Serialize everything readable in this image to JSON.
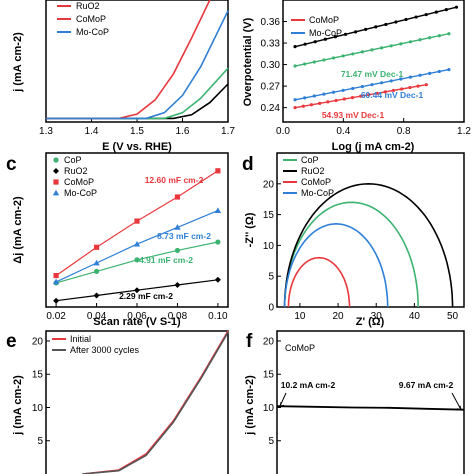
{
  "chart_data": [
    {
      "panel": "a",
      "type": "line",
      "xlabel": "E (V vs. RHE)",
      "ylabel": "j (mA cm-2)",
      "xlim": [
        1.3,
        1.7
      ],
      "xticks": [
        "1.3",
        "1.4",
        "1.5",
        "1.6",
        "1.7"
      ],
      "legend": [
        "RuO2",
        "CoMoP",
        "Mo-CoP"
      ],
      "series": [
        {
          "name": "CoP",
          "color": "#000000",
          "points": [
            [
              1.3,
              0
            ],
            [
              1.58,
              0
            ],
            [
              1.62,
              5
            ],
            [
              1.66,
              22
            ],
            [
              1.7,
              48
            ]
          ]
        },
        {
          "name": "RuO2",
          "color": "#3cb371",
          "points": [
            [
              1.3,
              0
            ],
            [
              1.56,
              0
            ],
            [
              1.6,
              8
            ],
            [
              1.64,
              28
            ],
            [
              1.7,
              70
            ]
          ]
        },
        {
          "name": "CoMoP",
          "color": "#e8383d",
          "points": [
            [
              1.3,
              0
            ],
            [
              1.46,
              0
            ],
            [
              1.5,
              6
            ],
            [
              1.54,
              26
            ],
            [
              1.58,
              62
            ],
            [
              1.62,
              112
            ],
            [
              1.66,
              165
            ]
          ]
        },
        {
          "name": "Mo-CoP",
          "color": "#2f7fd6",
          "points": [
            [
              1.3,
              0
            ],
            [
              1.52,
              0
            ],
            [
              1.56,
              8
            ],
            [
              1.6,
              32
            ],
            [
              1.64,
              72
            ],
            [
              1.7,
              150
            ]
          ]
        }
      ],
      "ylim": [
        -5,
        165
      ]
    },
    {
      "panel": "b",
      "type": "line",
      "xlabel": "Log (j mA cm-2)",
      "ylabel": "Overpotential (V)",
      "xlim": [
        0,
        1.2
      ],
      "ylim": [
        0.22,
        0.39
      ],
      "xticks": [
        "0.0",
        "0.4",
        "0.8",
        "1.2"
      ],
      "yticks": [
        "0.24",
        "0.27",
        "0.30",
        "0.33",
        "0.36"
      ],
      "legend": [
        "CoMoP",
        "Mo-CoP"
      ],
      "series": [
        {
          "name": "CoP",
          "color": "#000000",
          "x0": 0.08,
          "x1": 1.15,
          "y0": 0.325,
          "y1": 0.38
        },
        {
          "name": "RuO2",
          "color": "#3cb371",
          "x0": 0.08,
          "x1": 1.1,
          "y0": 0.298,
          "y1": 0.343
        },
        {
          "name": "Mo-CoP",
          "color": "#2f7fd6",
          "x0": 0.08,
          "x1": 1.1,
          "y0": 0.251,
          "y1": 0.293
        },
        {
          "name": "CoMoP",
          "color": "#e8383d",
          "x0": 0.08,
          "x1": 0.95,
          "y0": 0.24,
          "y1": 0.272
        }
      ],
      "annotations": [
        {
          "text": "71.47 mV Dec-1",
          "color": "#3cb371"
        },
        {
          "text": "60.44 mV Dec-1",
          "color": "#2f7fd6"
        },
        {
          "text": "54.93 mV Dec-1",
          "color": "#e8383d"
        }
      ]
    },
    {
      "panel": "c",
      "type": "scatter",
      "xlabel": "Scan rate (V S-1)",
      "ylabel": "Δj (mA cm-2)",
      "x": [
        0.02,
        0.04,
        0.06,
        0.08,
        0.1
      ],
      "xticks": [
        "0.02",
        "0.04",
        "0.06",
        "0.08",
        "0.10"
      ],
      "xlim": [
        0.015,
        0.105
      ],
      "ylim": [
        -0.02,
        1.45
      ],
      "legend": [
        "CoP",
        "RuO2",
        "CoMoP",
        "Mo-CoP"
      ],
      "series": [
        {
          "name": "CoP",
          "color": "#3cb371",
          "marker": "circle",
          "values": [
            0.21,
            0.32,
            0.43,
            0.52,
            0.6
          ]
        },
        {
          "name": "RuO2",
          "color": "#000000",
          "marker": "diamond",
          "values": [
            0.04,
            0.09,
            0.14,
            0.19,
            0.24
          ]
        },
        {
          "name": "CoMoP",
          "color": "#e8383d",
          "marker": "square",
          "values": [
            0.28,
            0.55,
            0.8,
            1.03,
            1.28
          ]
        },
        {
          "name": "Mo-CoP",
          "color": "#2f7fd6",
          "marker": "triangle",
          "values": [
            0.22,
            0.4,
            0.58,
            0.74,
            0.9
          ]
        }
      ],
      "annotations": [
        {
          "text": "12.60 mF cm-2",
          "color": "#e8383d"
        },
        {
          "text": "8.73 mF cm-2",
          "color": "#2f7fd6"
        },
        {
          "text": "4.91 mF cm-2",
          "color": "#3cb371"
        },
        {
          "text": "2.29 mF cm-2",
          "color": "#000000"
        }
      ]
    },
    {
      "panel": "d",
      "type": "line",
      "xlabel": "Z' (Ω)",
      "ylabel": "-Z'' (Ω)",
      "xlim": [
        4,
        53
      ],
      "ylim": [
        0,
        25
      ],
      "xticks": [
        "10",
        "20",
        "30",
        "40",
        "50"
      ],
      "yticks": [
        "0",
        "5",
        "10",
        "15",
        "20"
      ],
      "legend": [
        "CoP",
        "RuO2",
        "CoMoP",
        "Mo-CoP"
      ],
      "series": [
        {
          "name": "CoP",
          "color": "#3cb371",
          "start": 6,
          "end": 41,
          "peak": 17
        },
        {
          "name": "RuO2",
          "color": "#000000",
          "start": 6,
          "end": 50,
          "peak": 20
        },
        {
          "name": "CoMoP",
          "color": "#e8383d",
          "start": 7,
          "end": 23,
          "peak": 8
        },
        {
          "name": "Mo-CoP",
          "color": "#2f7fd6",
          "start": 6,
          "end": 33,
          "peak": 13.5
        }
      ]
    },
    {
      "panel": "e",
      "type": "line",
      "ylabel": "j (mA cm-2)",
      "yticks": [
        "20",
        "15",
        "10",
        "5"
      ],
      "ylim": [
        0,
        21.5
      ],
      "legend": [
        "Initial",
        "After 3000 cycles"
      ],
      "series": [
        {
          "name": "Initial",
          "color": "#e8383d",
          "x": [
            0.2,
            0.4,
            0.55,
            0.7,
            0.85,
            1
          ],
          "values": [
            0,
            0.6,
            3,
            8,
            14.5,
            21.5
          ]
        },
        {
          "name": "After 3000 cycles",
          "color": "#555555",
          "x": [
            0.2,
            0.4,
            0.55,
            0.7,
            0.85,
            1
          ],
          "values": [
            0,
            0.5,
            2.8,
            7.8,
            14.3,
            21.3
          ]
        }
      ]
    },
    {
      "panel": "f",
      "type": "line",
      "ylabel": "j (mA cm-2)",
      "yticks": [
        "20",
        "15",
        "10",
        "5"
      ],
      "ylim": [
        0,
        21.5
      ],
      "label": "CoMoP",
      "series": [
        {
          "name": "CoMoP",
          "color": "#000000",
          "x": [
            0,
            0.2,
            0.4,
            0.6,
            0.8,
            1
          ],
          "values": [
            10.2,
            10.1,
            10.0,
            9.95,
            9.8,
            9.67
          ]
        }
      ],
      "annotations": [
        {
          "text": "10.2 mA cm-2"
        },
        {
          "text": "9.67 mA cm-2"
        }
      ]
    }
  ],
  "panel_labels": [
    "c",
    "d",
    "e",
    "f"
  ]
}
